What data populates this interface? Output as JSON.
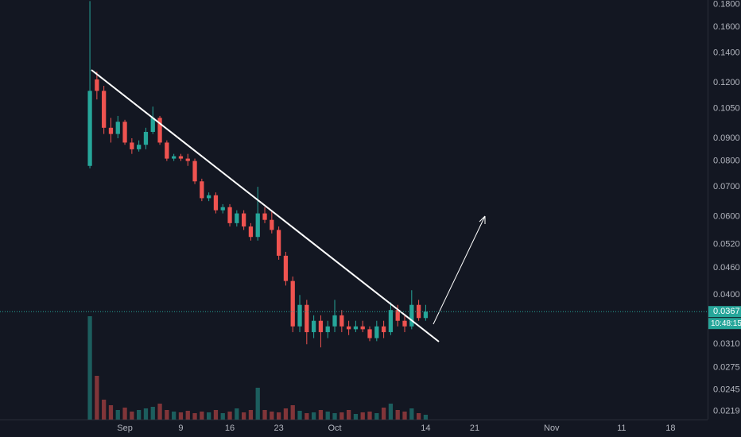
{
  "chart_data": {
    "type": "candlestick",
    "log_scale": true,
    "grid": false,
    "up_color": "#26a69a",
    "down_color": "#ef5350",
    "ylim": [
      0.021,
      0.184
    ],
    "yticks": [
      {
        "value": 0.18,
        "label": "0.1800"
      },
      {
        "value": 0.16,
        "label": "0.1600"
      },
      {
        "value": 0.14,
        "label": "0.1400"
      },
      {
        "value": 0.12,
        "label": "0.1200"
      },
      {
        "value": 0.105,
        "label": "0.1050"
      },
      {
        "value": 0.09,
        "label": "0.0900"
      },
      {
        "value": 0.08,
        "label": "0.0800"
      },
      {
        "value": 0.07,
        "label": "0.0700"
      },
      {
        "value": 0.06,
        "label": "0.0600"
      },
      {
        "value": 0.052,
        "label": "0.0520"
      },
      {
        "value": 0.046,
        "label": "0.0460"
      },
      {
        "value": 0.04,
        "label": "0.0400"
      },
      {
        "value": 0.031,
        "label": "0.0310"
      },
      {
        "value": 0.0275,
        "label": "0.0275"
      },
      {
        "value": 0.0245,
        "label": "0.0245"
      },
      {
        "value": 0.0219,
        "label": "0.0219"
      }
    ],
    "xlim": [
      -16.85,
      84.3
    ],
    "xticks": [
      {
        "value": 1,
        "label": "Sep"
      },
      {
        "value": 9,
        "label": "9"
      },
      {
        "value": 16,
        "label": "16"
      },
      {
        "value": 23,
        "label": "23"
      },
      {
        "value": 31,
        "label": "Oct"
      },
      {
        "value": 44,
        "label": "14"
      },
      {
        "value": 51,
        "label": "21"
      },
      {
        "value": 62,
        "label": "Nov"
      },
      {
        "value": 72,
        "label": "11"
      },
      {
        "value": 79,
        "label": "18"
      }
    ],
    "x": [
      -4,
      -3,
      -2,
      -1,
      0,
      1,
      2,
      3,
      4,
      5,
      6,
      7,
      8,
      9,
      10,
      11,
      12,
      13,
      14,
      15,
      16,
      17,
      18,
      19,
      20,
      21,
      22,
      23,
      24,
      25,
      26,
      27,
      28,
      29,
      30,
      31,
      32,
      33,
      34,
      35,
      36,
      37,
      38,
      39,
      40,
      41,
      42,
      43,
      44
    ],
    "open": [
      0.078,
      0.122,
      0.115,
      0.095,
      0.092,
      0.098,
      0.088,
      0.085,
      0.087,
      0.093,
      0.1,
      0.088,
      0.081,
      0.082,
      0.081,
      0.08,
      0.072,
      0.066,
      0.067,
      0.062,
      0.063,
      0.058,
      0.061,
      0.057,
      0.054,
      0.061,
      0.059,
      0.056,
      0.049,
      0.043,
      0.034,
      0.038,
      0.033,
      0.035,
      0.033,
      0.034,
      0.036,
      0.034,
      0.0335,
      0.034,
      0.0335,
      0.032,
      0.034,
      0.033,
      0.037,
      0.035,
      0.034,
      0.038,
      0.0355
    ],
    "high": [
      0.183,
      0.127,
      0.118,
      0.1,
      0.101,
      0.099,
      0.09,
      0.089,
      0.095,
      0.106,
      0.101,
      0.089,
      0.083,
      0.083,
      0.083,
      0.081,
      0.073,
      0.068,
      0.068,
      0.064,
      0.064,
      0.062,
      0.062,
      0.058,
      0.07,
      0.063,
      0.062,
      0.057,
      0.05,
      0.044,
      0.04,
      0.039,
      0.036,
      0.036,
      0.035,
      0.039,
      0.037,
      0.035,
      0.035,
      0.035,
      0.034,
      0.035,
      0.035,
      0.0385,
      0.038,
      0.036,
      0.041,
      0.039,
      0.038
    ],
    "low": [
      0.077,
      0.11,
      0.092,
      0.088,
      0.09,
      0.087,
      0.083,
      0.084,
      0.085,
      0.092,
      0.087,
      0.08,
      0.08,
      0.08,
      0.078,
      0.071,
      0.065,
      0.065,
      0.061,
      0.061,
      0.057,
      0.057,
      0.056,
      0.053,
      0.053,
      0.058,
      0.055,
      0.048,
      0.042,
      0.033,
      0.033,
      0.031,
      0.032,
      0.0305,
      0.032,
      0.033,
      0.033,
      0.0325,
      0.033,
      0.033,
      0.0315,
      0.0315,
      0.032,
      0.0325,
      0.034,
      0.033,
      0.0335,
      0.035,
      0.035
    ],
    "close": [
      0.115,
      0.115,
      0.095,
      0.092,
      0.098,
      0.088,
      0.085,
      0.087,
      0.093,
      0.1,
      0.088,
      0.081,
      0.082,
      0.081,
      0.08,
      0.072,
      0.066,
      0.067,
      0.062,
      0.063,
      0.058,
      0.061,
      0.057,
      0.054,
      0.061,
      0.059,
      0.056,
      0.049,
      0.043,
      0.034,
      0.038,
      0.033,
      0.035,
      0.033,
      0.034,
      0.036,
      0.034,
      0.0335,
      0.034,
      0.0335,
      0.032,
      0.034,
      0.033,
      0.037,
      0.035,
      0.034,
      0.038,
      0.0355,
      0.0367
    ],
    "volume": [
      130,
      55,
      25,
      18,
      12,
      15,
      10,
      12,
      14,
      16,
      20,
      12,
      10,
      9,
      11,
      8,
      10,
      9,
      12,
      8,
      10,
      14,
      9,
      12,
      40,
      12,
      10,
      9,
      14,
      18,
      11,
      8,
      9,
      12,
      10,
      8,
      9,
      12,
      7,
      9,
      10,
      8,
      15,
      20,
      12,
      10,
      14,
      8,
      6
    ],
    "last_price": {
      "value": 0.0367,
      "label": "0.0367"
    },
    "countdown": "10:48:15"
  }
}
